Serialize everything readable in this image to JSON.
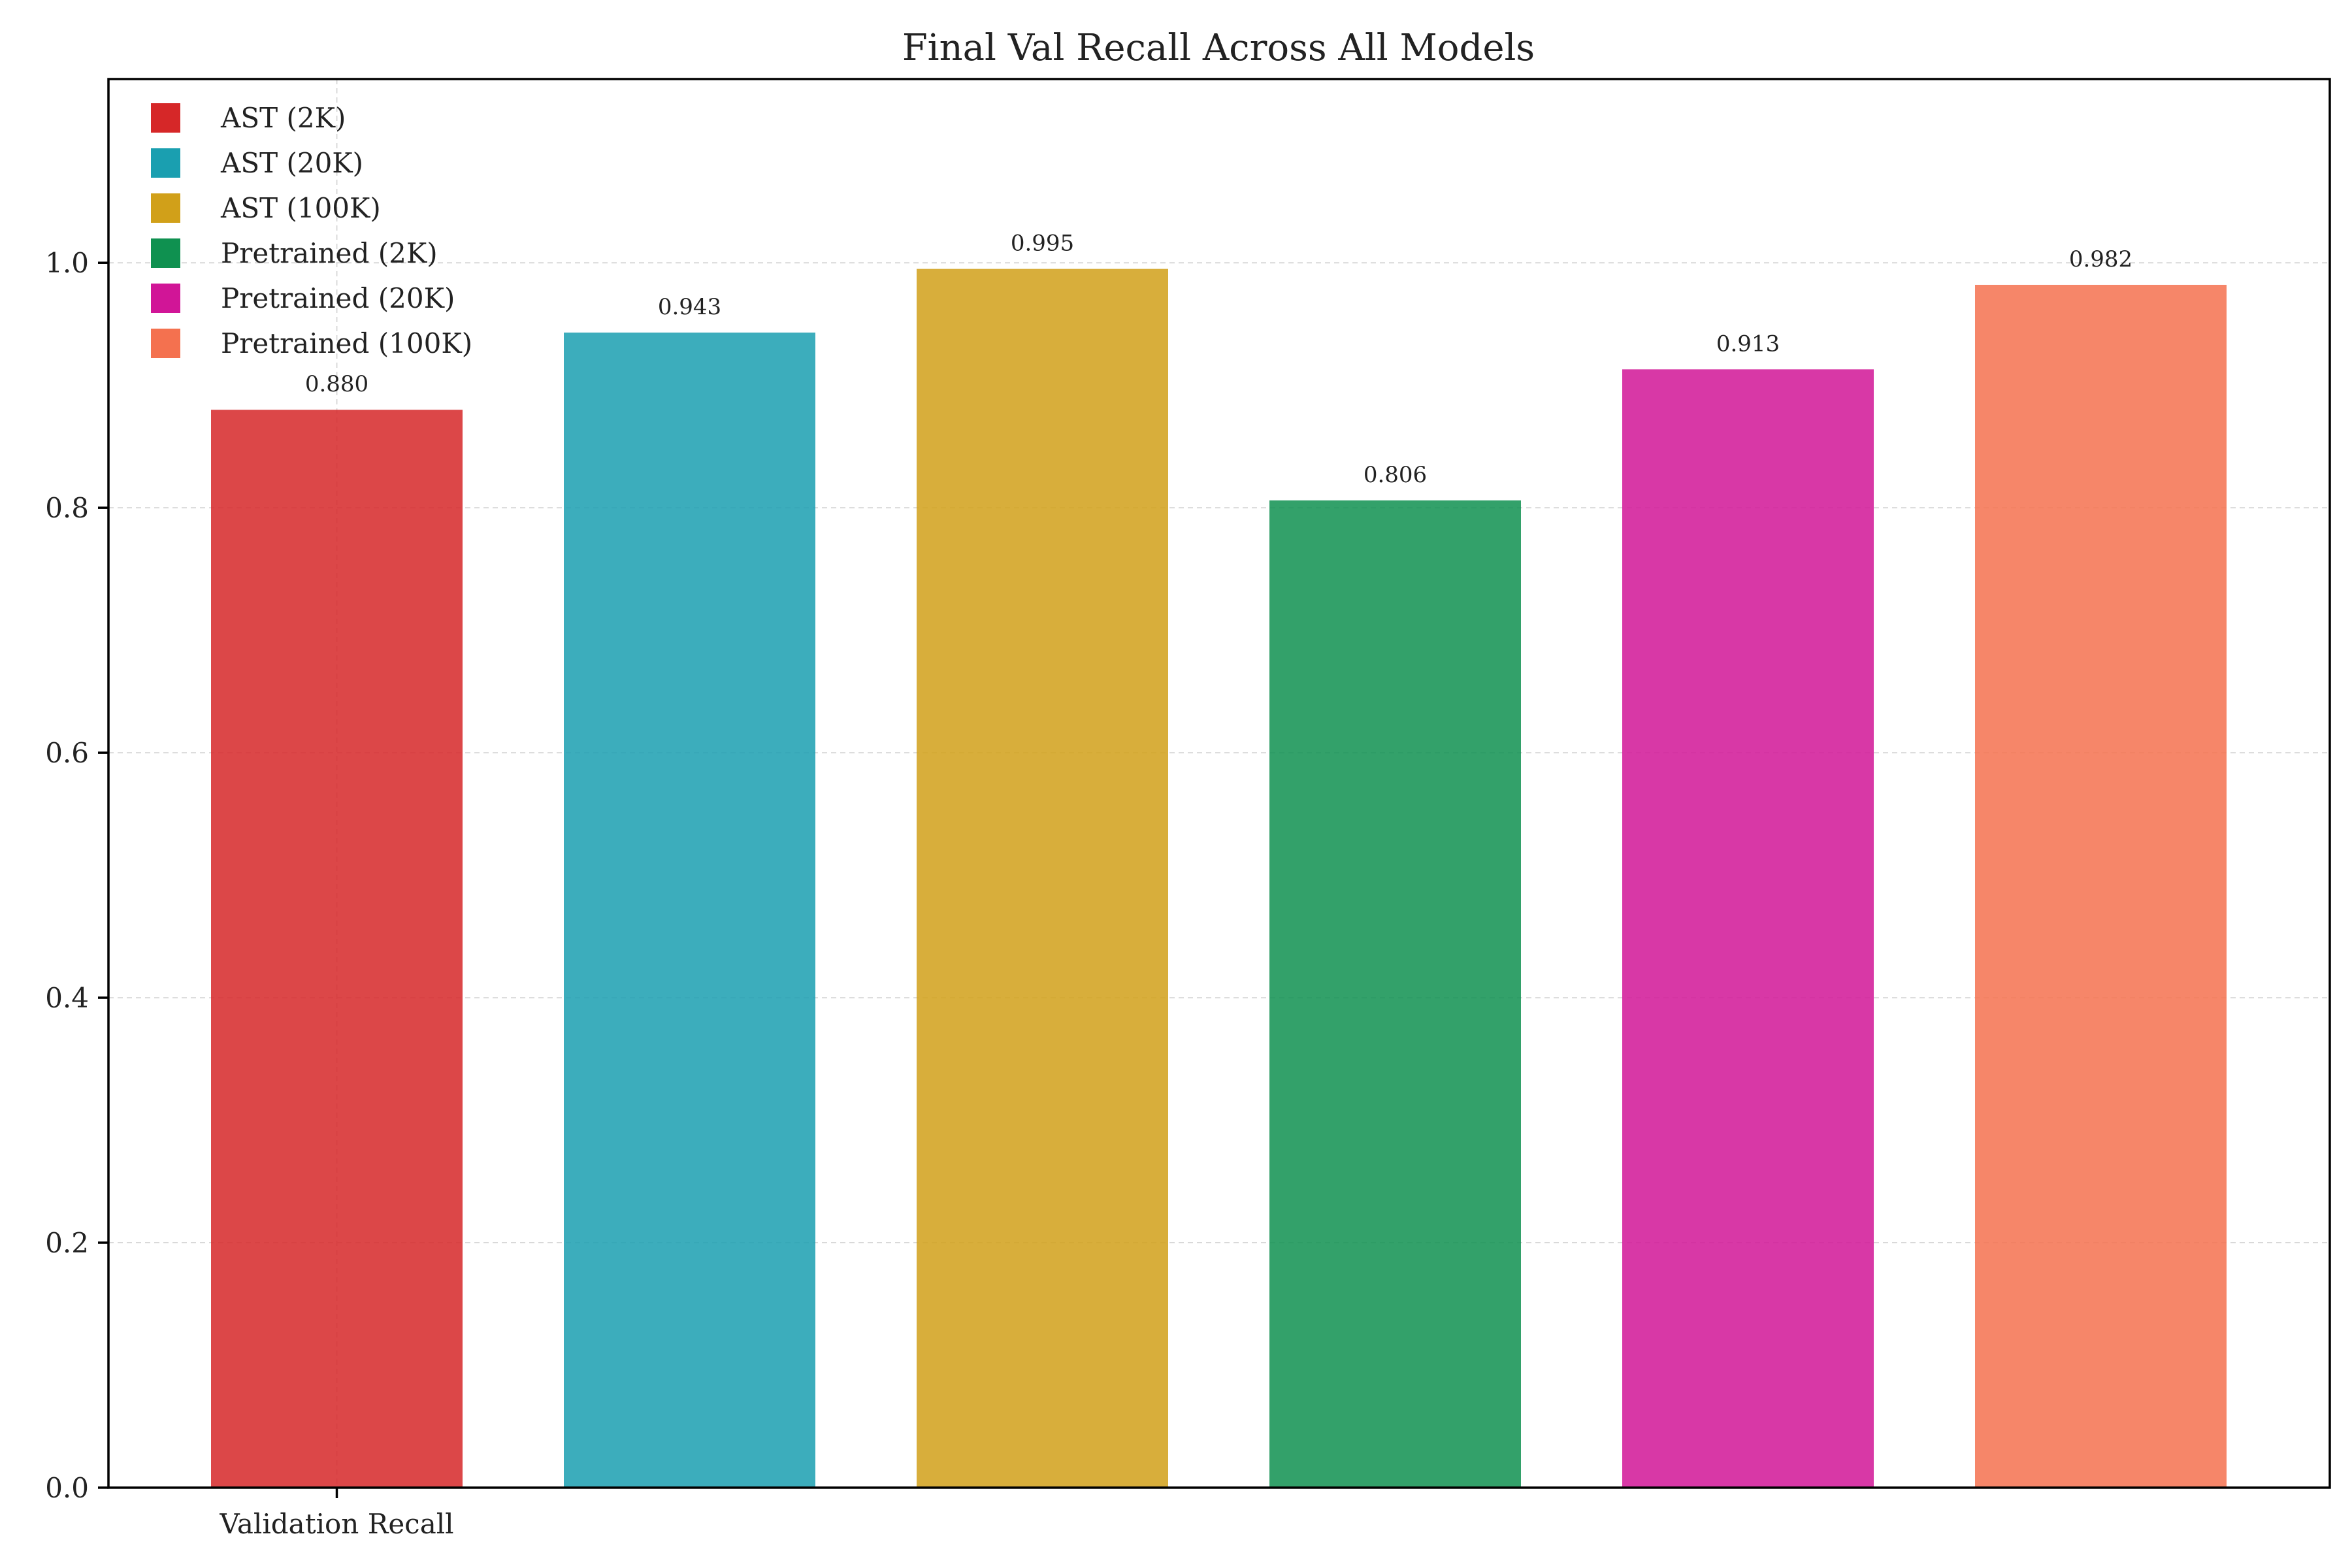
{
  "chart_data": {
    "type": "bar",
    "title": "Final Val Recall Across All Models",
    "xlabel": "",
    "ylabel": "",
    "categories": [
      "Validation Recall"
    ],
    "ylim": [
      0,
      1.15
    ],
    "yticks": [
      "0.0",
      "0.2",
      "0.4",
      "0.6",
      "0.8",
      "1.0"
    ],
    "grid": true,
    "legend_position": "top-left",
    "series": [
      {
        "name": "AST (2K)",
        "value": 0.88,
        "label": "0.880",
        "color": "#d62728"
      },
      {
        "name": "AST (20K)",
        "value": 0.943,
        "label": "0.943",
        "color": "#1a9fb0"
      },
      {
        "name": "AST (100K)",
        "value": 0.995,
        "label": "0.995",
        "color": "#d1a019"
      },
      {
        "name": "Pretrained (2K)",
        "value": 0.806,
        "label": "0.806",
        "color": "#0f9150"
      },
      {
        "name": "Pretrained (20K)",
        "value": 0.913,
        "label": "0.913",
        "color": "#d11597"
      },
      {
        "name": "Pretrained (100K)",
        "value": 0.982,
        "label": "0.982",
        "color": "#f4714f"
      }
    ]
  }
}
